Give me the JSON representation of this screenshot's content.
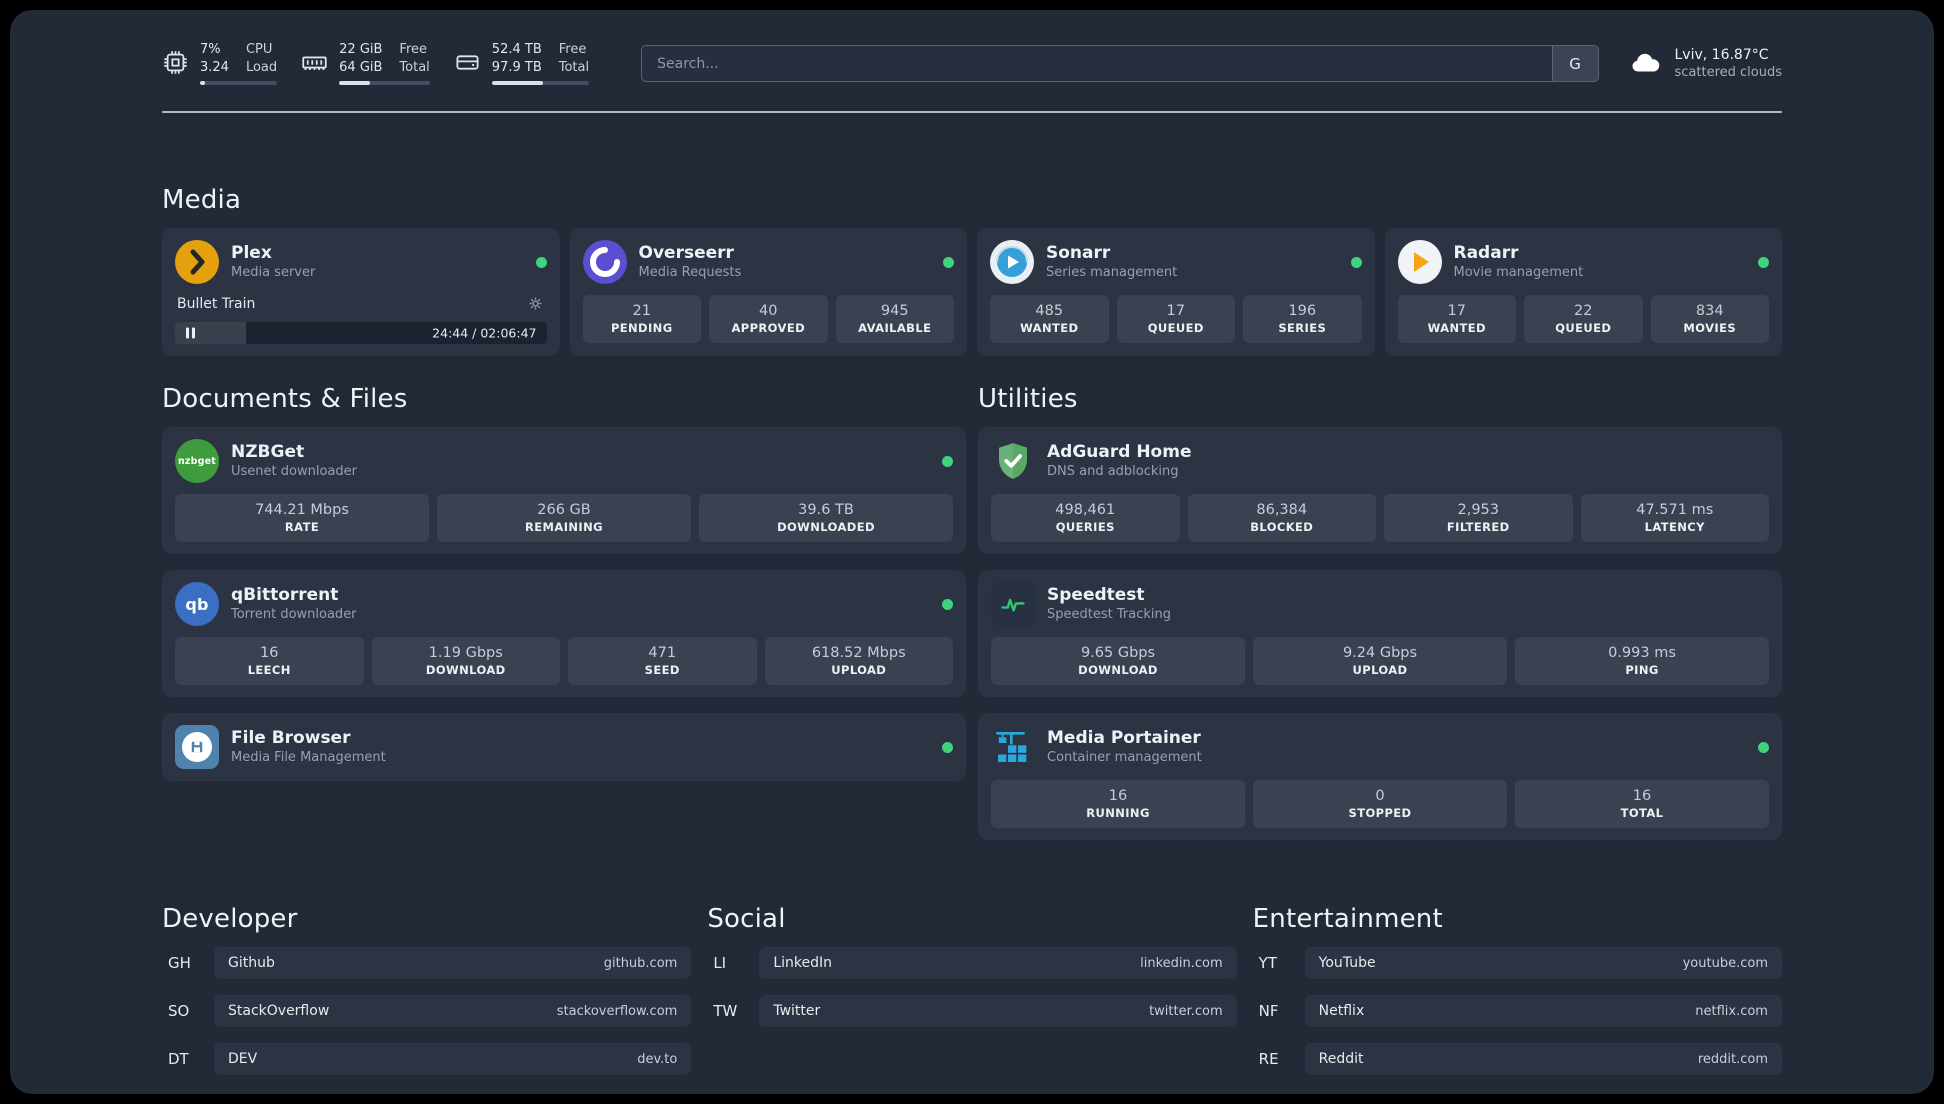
{
  "colors": {
    "status-green": "#3fd37d",
    "plex-amber": "#e5a00d",
    "overseerr-purple": "#5a4fd0",
    "sonarr-blue": "#35a0d7",
    "radarr-amber": "#f7a416",
    "nzbget-green": "#3f9c3c",
    "qbittorrent-blue": "#3a6fc4",
    "filebrowser-blue": "#4f82ad",
    "adguard-green": "#67b279",
    "speedtest-green": "#2ecc71",
    "portainer-blue": "#29a8dd"
  },
  "topbar": {
    "cpu": {
      "value_top": "7%",
      "value_bottom": "3.24",
      "label_top": "CPU",
      "label_bottom": "Load",
      "bar_percent": 7
    },
    "memory": {
      "value_top": "22 GiB",
      "value_bottom": "64 GiB",
      "label_top": "Free",
      "label_bottom": "Total",
      "bar_percent": 34
    },
    "disk": {
      "value_top": "52.4 TB",
      "value_bottom": "97.9 TB",
      "label_top": "Free",
      "label_bottom": "Total",
      "bar_percent": 53
    },
    "search": {
      "placeholder": "Search...",
      "provider_label": "G"
    },
    "weather": {
      "location": "Lviv, 16.87°C",
      "condition": "scattered clouds"
    }
  },
  "media": {
    "title": "Media",
    "plex": {
      "name": "Plex",
      "subtitle": "Media server",
      "now_playing": "Bullet Train",
      "time": "24:44 / 02:06:47",
      "progress_percent": 19
    },
    "overseerr": {
      "name": "Overseerr",
      "subtitle": "Media Requests",
      "stats": [
        {
          "value": "21",
          "label": "PENDING"
        },
        {
          "value": "40",
          "label": "APPROVED"
        },
        {
          "value": "945",
          "label": "AVAILABLE"
        }
      ]
    },
    "sonarr": {
      "name": "Sonarr",
      "subtitle": "Series management",
      "stats": [
        {
          "value": "485",
          "label": "WANTED"
        },
        {
          "value": "17",
          "label": "QUEUED"
        },
        {
          "value": "196",
          "label": "SERIES"
        }
      ]
    },
    "radarr": {
      "name": "Radarr",
      "subtitle": "Movie management",
      "stats": [
        {
          "value": "17",
          "label": "WANTED"
        },
        {
          "value": "22",
          "label": "QUEUED"
        },
        {
          "value": "834",
          "label": "MOVIES"
        }
      ]
    }
  },
  "documents": {
    "title": "Documents & Files",
    "nzbget": {
      "name": "NZBGet",
      "subtitle": "Usenet downloader",
      "icon_text": "nzbget",
      "stats": [
        {
          "value": "744.21 Mbps",
          "label": "RATE"
        },
        {
          "value": "266 GB",
          "label": "REMAINING"
        },
        {
          "value": "39.6 TB",
          "label": "DOWNLOADED"
        }
      ]
    },
    "qbittorrent": {
      "name": "qBittorrent",
      "subtitle": "Torrent downloader",
      "icon_text": "qb",
      "stats": [
        {
          "value": "16",
          "label": "LEECH"
        },
        {
          "value": "1.19 Gbps",
          "label": "DOWNLOAD"
        },
        {
          "value": "471",
          "label": "SEED"
        },
        {
          "value": "618.52 Mbps",
          "label": "UPLOAD"
        }
      ]
    },
    "filebrowser": {
      "name": "File Browser",
      "subtitle": "Media File Management"
    }
  },
  "utilities": {
    "title": "Utilities",
    "adguard": {
      "name": "AdGuard Home",
      "subtitle": "DNS and adblocking",
      "stats": [
        {
          "value": "498,461",
          "label": "QUERIES"
        },
        {
          "value": "86,384",
          "label": "BLOCKED"
        },
        {
          "value": "2,953",
          "label": "FILTERED"
        },
        {
          "value": "47.571 ms",
          "label": "LATENCY"
        }
      ]
    },
    "speedtest": {
      "name": "Speedtest",
      "subtitle": "Speedtest Tracking",
      "stats": [
        {
          "value": "9.65 Gbps",
          "label": "DOWNLOAD"
        },
        {
          "value": "9.24 Gbps",
          "label": "UPLOAD"
        },
        {
          "value": "0.993 ms",
          "label": "PING"
        }
      ]
    },
    "portainer": {
      "name": "Media Portainer",
      "subtitle": "Container management",
      "stats": [
        {
          "value": "16",
          "label": "RUNNING"
        },
        {
          "value": "0",
          "label": "STOPPED"
        },
        {
          "value": "16",
          "label": "TOTAL"
        }
      ]
    }
  },
  "bookmarks": {
    "developer": {
      "title": "Developer",
      "items": [
        {
          "abbr": "GH",
          "name": "Github",
          "domain": "github.com"
        },
        {
          "abbr": "SO",
          "name": "StackOverflow",
          "domain": "stackoverflow.com"
        },
        {
          "abbr": "DT",
          "name": "DEV",
          "domain": "dev.to"
        }
      ]
    },
    "social": {
      "title": "Social",
      "items": [
        {
          "abbr": "LI",
          "name": "LinkedIn",
          "domain": "linkedin.com"
        },
        {
          "abbr": "TW",
          "name": "Twitter",
          "domain": "twitter.com"
        }
      ]
    },
    "entertainment": {
      "title": "Entertainment",
      "items": [
        {
          "abbr": "YT",
          "name": "YouTube",
          "domain": "youtube.com"
        },
        {
          "abbr": "NF",
          "name": "Netflix",
          "domain": "netflix.com"
        },
        {
          "abbr": "RE",
          "name": "Reddit",
          "domain": "reddit.com"
        }
      ]
    }
  }
}
